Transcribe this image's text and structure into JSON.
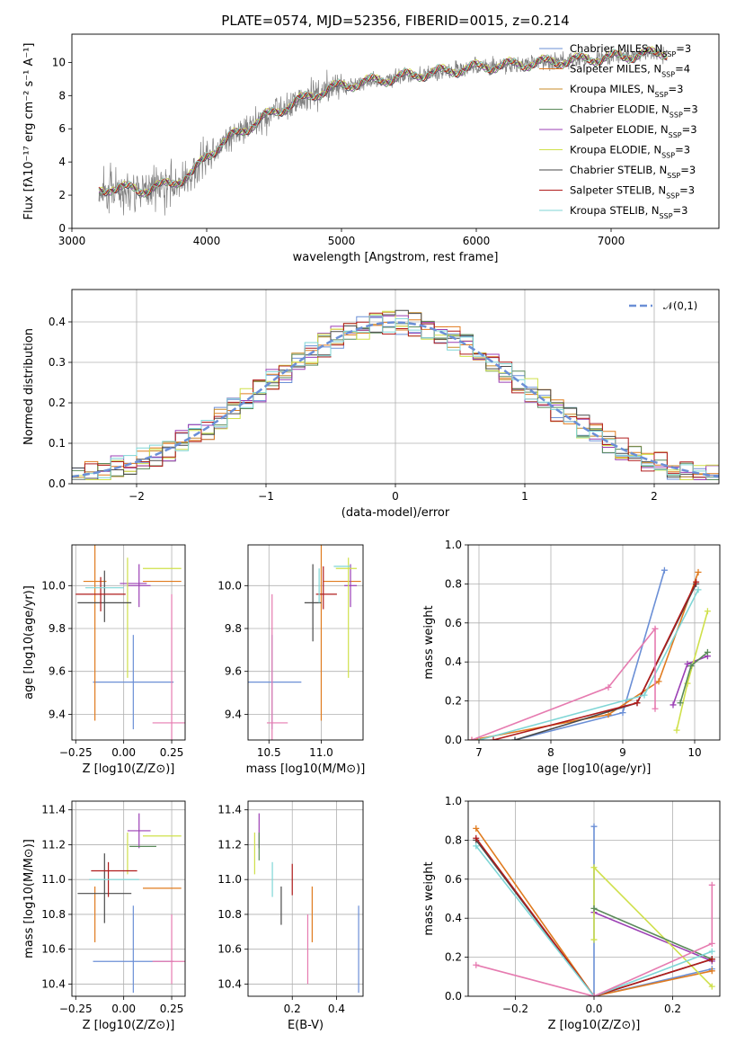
{
  "figure_title": "PLATE=0574, MJD=52356, FIBERID=0015, z=0.214",
  "colors": [
    "#1f77b4",
    "#ff7f0e",
    "#2ca02c",
    "#9467bd",
    "#bcbd22",
    "#444444",
    "#8c1515",
    "#17becf",
    "#e377c2",
    "#999999"
  ],
  "series_colors": {
    "chabrier_miles": "#6b8fd6",
    "salpeter_miles": "#e07b1f",
    "kroupa_miles": "#c98b2a",
    "chabrier_elodie": "#5a8a5a",
    "salpeter_elodie": "#9b3fb4",
    "kroupa_elodie": "#cfe04a",
    "chabrier_stelib": "#4a4a4a",
    "salpeter_stelib": "#b01c1c",
    "kroupa_stelib": "#7fd6d6",
    "data": "#808080",
    "pink": "#e67bb0"
  },
  "chart_data": [
    {
      "type": "line",
      "panel": "spectrum",
      "xlabel": "wavelength [Angstrom, rest frame]",
      "ylabel": "Flux [fλ10⁻¹⁷ erg cm⁻² s⁻¹ A⁻¹]",
      "xlim": [
        3000,
        7800
      ],
      "ylim": [
        0,
        11.7
      ],
      "xticks": [
        3000,
        4000,
        5000,
        6000,
        7000
      ],
      "yticks": [
        0,
        2,
        4,
        6,
        8,
        10
      ],
      "legend_position": "upper-right",
      "legend": [
        "Chabrier MILES, N_SSP=3",
        "Salpeter MILES, N_SSP=4",
        "Kroupa MILES, N_SSP=3",
        "Chabrier ELODIE, N_SSP=3",
        "Salpeter ELODIE, N_SSP=3",
        "Kroupa ELODIE, N_SSP=3",
        "Chabrier STELIB, N_SSP=3",
        "Salpeter STELIB, N_SSP=3",
        "Kroupa STELIB, N_SSP=3"
      ],
      "continuum": {
        "x": [
          3200,
          3300,
          3500,
          3700,
          3900,
          4000,
          4200,
          4500,
          4800,
          5000,
          5500,
          6000,
          6500,
          7000,
          7400
        ],
        "y": [
          2.2,
          2.5,
          2.3,
          2.6,
          3.3,
          4.4,
          5.6,
          7.0,
          8.1,
          8.6,
          9.2,
          9.7,
          10.0,
          10.3,
          10.6
        ]
      }
    },
    {
      "type": "step",
      "panel": "residuals",
      "xlabel": "(data-model)/error",
      "ylabel": "Normed distribution",
      "xlim": [
        -2.5,
        2.5
      ],
      "ylim": [
        0,
        0.48
      ],
      "xticks": [
        -2,
        -1,
        0,
        1,
        2
      ],
      "yticks": [
        0.0,
        0.1,
        0.2,
        0.3,
        0.4
      ],
      "legend": "𝒩(0,1)",
      "legend_position": "upper-right",
      "gaussian": {
        "mu": 0,
        "sigma": 1
      },
      "bin_width": 0.1
    },
    {
      "type": "errorbar",
      "panel": "age_vs_Z",
      "xlabel": "Z [log10(Z/Z⊙)]",
      "ylabel": "age  [log10(age/yr)]",
      "xlim": [
        -0.27,
        0.32
      ],
      "ylim": [
        9.28,
        10.19
      ],
      "xticks": [
        -0.25,
        0.0,
        0.25
      ],
      "yticks": [
        9.4,
        9.6,
        9.8,
        10.0
      ],
      "points": [
        {
          "x": 0.05,
          "y": 9.55,
          "xerr": 0.21,
          "yerr": 0.22,
          "c": "chabrier_miles"
        },
        {
          "x": 0.2,
          "y": 10.02,
          "xerr": 0.1,
          "yerr": 0.0,
          "c": "salpeter_miles"
        },
        {
          "x": -0.15,
          "y": 10.02,
          "xerr": 0.06,
          "yerr": 0.65,
          "c": "salpeter_miles"
        },
        {
          "x": 0.08,
          "y": 10.0,
          "xerr": 0.06,
          "yerr": 0.1,
          "c": "salpeter_elodie"
        },
        {
          "x": 0.05,
          "y": 10.01,
          "xerr": 0.07,
          "yerr": 0.0,
          "c": "salpeter_elodie"
        },
        {
          "x": 0.2,
          "y": 10.08,
          "xerr": 0.1,
          "yerr": 0.0,
          "c": "kroupa_elodie"
        },
        {
          "x": 0.02,
          "y": 9.85,
          "xerr": 0.0,
          "yerr": 0.28,
          "c": "kroupa_elodie"
        },
        {
          "x": -0.1,
          "y": 9.92,
          "xerr": 0.14,
          "yerr": 0.0,
          "c": "chabrier_stelib"
        },
        {
          "x": -0.1,
          "y": 9.95,
          "xerr": 0.0,
          "yerr": 0.12,
          "c": "chabrier_stelib"
        },
        {
          "x": -0.12,
          "y": 9.96,
          "xerr": 0.13,
          "yerr": 0.08,
          "c": "salpeter_stelib"
        },
        {
          "x": -0.1,
          "y": 9.99,
          "xerr": 0.1,
          "yerr": 0.0,
          "c": "kroupa_stelib"
        },
        {
          "x": 0.25,
          "y": 9.36,
          "xerr": 0.1,
          "yerr": 0.6,
          "c": "pink"
        },
        {
          "x": 0.0,
          "y": 9.4,
          "xerr": 0.0,
          "yerr": 0.0,
          "c": "pink"
        }
      ]
    },
    {
      "type": "errorbar",
      "panel": "age_vs_mass",
      "xlabel": "mass [log10(M/M⊙)]",
      "ylabel": "",
      "xlim": [
        10.3,
        11.4
      ],
      "ylim": [
        9.28,
        10.19
      ],
      "xticks": [
        10.5,
        11.0
      ],
      "yticks": [
        9.4,
        9.6,
        9.8,
        10.0
      ],
      "points": [
        {
          "x": 10.53,
          "y": 9.55,
          "xerr": 0.28,
          "yerr": 0.0,
          "c": "chabrier_miles"
        },
        {
          "x": 10.53,
          "y": 9.55,
          "xerr": 0.0,
          "yerr": 0.22,
          "c": "chabrier_miles"
        },
        {
          "x": 11.0,
          "y": 10.02,
          "xerr": 0.0,
          "yerr": 0.65,
          "c": "salpeter_miles"
        },
        {
          "x": 11.2,
          "y": 10.02,
          "xerr": 0.18,
          "yerr": 0.0,
          "c": "salpeter_miles"
        },
        {
          "x": 11.28,
          "y": 10.0,
          "xerr": 0.06,
          "yerr": 0.1,
          "c": "salpeter_elodie"
        },
        {
          "x": 11.24,
          "y": 10.08,
          "xerr": 0.1,
          "yerr": 0.0,
          "c": "kroupa_elodie"
        },
        {
          "x": 11.26,
          "y": 9.85,
          "xerr": 0.0,
          "yerr": 0.28,
          "c": "kroupa_elodie"
        },
        {
          "x": 10.92,
          "y": 9.92,
          "xerr": 0.08,
          "yerr": 0.18,
          "c": "chabrier_stelib"
        },
        {
          "x": 11.05,
          "y": 9.96,
          "xerr": 0.1,
          "yerr": 0.0,
          "c": "salpeter_stelib"
        },
        {
          "x": 11.02,
          "y": 9.99,
          "xerr": 0.0,
          "yerr": 0.1,
          "c": "salpeter_stelib"
        },
        {
          "x": 11.2,
          "y": 10.09,
          "xerr": 0.08,
          "yerr": 0.0,
          "c": "kroupa_stelib"
        },
        {
          "x": 10.98,
          "y": 10.0,
          "xerr": 0.0,
          "yerr": 0.08,
          "c": "kroupa_stelib"
        },
        {
          "x": 10.58,
          "y": 9.36,
          "xerr": 0.1,
          "yerr": 0.0,
          "c": "pink"
        },
        {
          "x": 10.53,
          "y": 9.6,
          "xerr": 0.0,
          "yerr": 0.36,
          "c": "pink"
        }
      ]
    },
    {
      "type": "line",
      "panel": "mass_weight_vs_age",
      "xlabel": "age  [log10(age/yr)]",
      "ylabel": "mass weight",
      "xlim": [
        6.85,
        10.35
      ],
      "ylim": [
        0,
        1.0
      ],
      "xticks": [
        7,
        8,
        9,
        10
      ],
      "yticks": [
        0.0,
        0.2,
        0.4,
        0.6,
        0.8,
        1.0
      ],
      "series": [
        {
          "c": "chabrier_miles",
          "x": [
            7.5,
            9.0,
            9.58
          ],
          "y": [
            0.0,
            0.14,
            0.87
          ]
        },
        {
          "c": "salpeter_miles",
          "x": [
            6.9,
            8.8,
            9.5,
            10.05
          ],
          "y": [
            0.0,
            0.13,
            0.3,
            0.86
          ]
        },
        {
          "c": "salpeter_elodie",
          "x": [
            9.7,
            9.9,
            10.18
          ],
          "y": [
            0.18,
            0.39,
            0.43
          ]
        },
        {
          "c": "kroupa_elodie",
          "x": [
            9.75,
            9.9,
            10.18
          ],
          "y": [
            0.05,
            0.29,
            0.66
          ]
        },
        {
          "c": "chabrier_elodie",
          "x": [
            9.8,
            9.95,
            10.18
          ],
          "y": [
            0.19,
            0.38,
            0.45
          ]
        },
        {
          "c": "chabrier_stelib",
          "x": [
            7.5,
            9.2,
            10.02
          ],
          "y": [
            0.0,
            0.19,
            0.8
          ]
        },
        {
          "c": "salpeter_stelib",
          "x": [
            7.2,
            9.2,
            10.02
          ],
          "y": [
            0.0,
            0.19,
            0.81
          ]
        },
        {
          "c": "kroupa_stelib",
          "x": [
            7.0,
            9.3,
            10.05
          ],
          "y": [
            0.0,
            0.23,
            0.77
          ]
        },
        {
          "c": "pink",
          "x": [
            6.9,
            8.8,
            9.45,
            9.45
          ],
          "y": [
            0.0,
            0.27,
            0.57,
            0.16
          ]
        }
      ]
    },
    {
      "type": "errorbar",
      "panel": "mass_vs_Z",
      "xlabel": "Z [log10(Z/Z⊙)]",
      "ylabel": "mass [log10(M/M⊙)]",
      "xlim": [
        -0.27,
        0.32
      ],
      "ylim": [
        10.33,
        11.45
      ],
      "xticks": [
        -0.25,
        0.0,
        0.25
      ],
      "yticks": [
        10.4,
        10.6,
        10.8,
        11.0,
        11.2,
        11.4
      ],
      "points": [
        {
          "x": 0.05,
          "y": 10.53,
          "xerr": 0.21,
          "yerr": 0.0,
          "c": "chabrier_miles"
        },
        {
          "x": 0.05,
          "y": 10.6,
          "xerr": 0.0,
          "yerr": 0.25,
          "c": "chabrier_miles"
        },
        {
          "x": 0.2,
          "y": 10.95,
          "xerr": 0.1,
          "yerr": 0.0,
          "c": "salpeter_miles"
        },
        {
          "x": -0.15,
          "y": 10.8,
          "xerr": 0.0,
          "yerr": 0.16,
          "c": "salpeter_miles"
        },
        {
          "x": 0.08,
          "y": 11.28,
          "xerr": 0.06,
          "yerr": 0.1,
          "c": "salpeter_elodie"
        },
        {
          "x": 0.2,
          "y": 11.25,
          "xerr": 0.1,
          "yerr": 0.0,
          "c": "kroupa_elodie"
        },
        {
          "x": 0.02,
          "y": 11.15,
          "xerr": 0.0,
          "yerr": 0.12,
          "c": "kroupa_elodie"
        },
        {
          "x": 0.1,
          "y": 11.19,
          "xerr": 0.07,
          "yerr": 0.0,
          "c": "chabrier_elodie"
        },
        {
          "x": -0.1,
          "y": 10.92,
          "xerr": 0.14,
          "yerr": 0.0,
          "c": "chabrier_stelib"
        },
        {
          "x": -0.1,
          "y": 10.95,
          "xerr": 0.0,
          "yerr": 0.2,
          "c": "chabrier_stelib"
        },
        {
          "x": -0.05,
          "y": 11.05,
          "xerr": 0.12,
          "yerr": 0.0,
          "c": "salpeter_stelib"
        },
        {
          "x": -0.08,
          "y": 11.0,
          "xerr": 0.0,
          "yerr": 0.1,
          "c": "salpeter_stelib"
        },
        {
          "x": -0.05,
          "y": 11.0,
          "xerr": 0.13,
          "yerr": 0.0,
          "c": "kroupa_stelib"
        },
        {
          "x": 0.25,
          "y": 10.53,
          "xerr": 0.1,
          "yerr": 0.0,
          "c": "pink"
        },
        {
          "x": 0.25,
          "y": 10.6,
          "xerr": 0.0,
          "yerr": 0.2,
          "c": "pink"
        }
      ]
    },
    {
      "type": "errorbar",
      "panel": "mass_vs_ebv",
      "xlabel": "E(B-V)",
      "ylabel": "",
      "xlim": [
        0.0,
        0.52
      ],
      "ylim": [
        10.33,
        11.45
      ],
      "xticks": [
        0.2,
        0.4
      ],
      "yticks": [
        10.4,
        10.6,
        10.8,
        11.0,
        11.2,
        11.4
      ],
      "points": [
        {
          "x": 0.5,
          "y": 10.6,
          "xerr": 0.0,
          "yerr": 0.25,
          "c": "chabrier_miles"
        },
        {
          "x": 0.29,
          "y": 10.8,
          "xerr": 0.0,
          "yerr": 0.16,
          "c": "salpeter_miles"
        },
        {
          "x": 0.05,
          "y": 11.28,
          "xerr": 0.0,
          "yerr": 0.1,
          "c": "salpeter_elodie"
        },
        {
          "x": 0.03,
          "y": 11.15,
          "xerr": 0.0,
          "yerr": 0.12,
          "c": "kroupa_elodie"
        },
        {
          "x": 0.05,
          "y": 11.19,
          "xerr": 0.0,
          "yerr": 0.08,
          "c": "chabrier_elodie"
        },
        {
          "x": 0.15,
          "y": 10.85,
          "xerr": 0.0,
          "yerr": 0.11,
          "c": "chabrier_stelib"
        },
        {
          "x": 0.2,
          "y": 11.0,
          "xerr": 0.0,
          "yerr": 0.09,
          "c": "salpeter_stelib"
        },
        {
          "x": 0.11,
          "y": 11.0,
          "xerr": 0.0,
          "yerr": 0.1,
          "c": "kroupa_stelib"
        },
        {
          "x": 0.27,
          "y": 10.6,
          "xerr": 0.0,
          "yerr": 0.2,
          "c": "pink"
        }
      ]
    },
    {
      "type": "line",
      "panel": "mass_weight_vs_Z",
      "xlabel": "Z [log10(Z/Z⊙)]",
      "ylabel": "mass weight",
      "xlim": [
        -0.32,
        0.32
      ],
      "ylim": [
        0,
        1.0
      ],
      "xticks": [
        -0.2,
        0.0,
        0.2
      ],
      "yticks": [
        0.0,
        0.2,
        0.4,
        0.6,
        0.8,
        1.0
      ],
      "series": [
        {
          "c": "chabrier_miles",
          "x": [
            0.0,
            0.0,
            0.3
          ],
          "y": [
            0.87,
            0.0,
            0.14
          ]
        },
        {
          "c": "salpeter_miles",
          "x": [
            -0.3,
            0.0,
            0.3
          ],
          "y": [
            0.86,
            0.0,
            0.13
          ]
        },
        {
          "c": "salpeter_elodie",
          "x": [
            0.0,
            0.3
          ],
          "y": [
            0.43,
            0.18
          ]
        },
        {
          "c": "kroupa_elodie",
          "x": [
            0.0,
            0.0,
            0.3
          ],
          "y": [
            0.29,
            0.66,
            0.05
          ]
        },
        {
          "c": "chabrier_elodie",
          "x": [
            0.0,
            0.3
          ],
          "y": [
            0.45,
            0.19
          ]
        },
        {
          "c": "chabrier_stelib",
          "x": [
            -0.3,
            0.0,
            0.3
          ],
          "y": [
            0.8,
            0.0,
            0.19
          ]
        },
        {
          "c": "salpeter_stelib",
          "x": [
            -0.3,
            0.0,
            0.3
          ],
          "y": [
            0.81,
            0.0,
            0.19
          ]
        },
        {
          "c": "kroupa_stelib",
          "x": [
            -0.3,
            0.0,
            0.3
          ],
          "y": [
            0.77,
            0.0,
            0.23
          ]
        },
        {
          "c": "pink",
          "x": [
            -0.3,
            0.0,
            0.3,
            0.3
          ],
          "y": [
            0.16,
            0.0,
            0.27,
            0.57
          ]
        }
      ]
    }
  ]
}
